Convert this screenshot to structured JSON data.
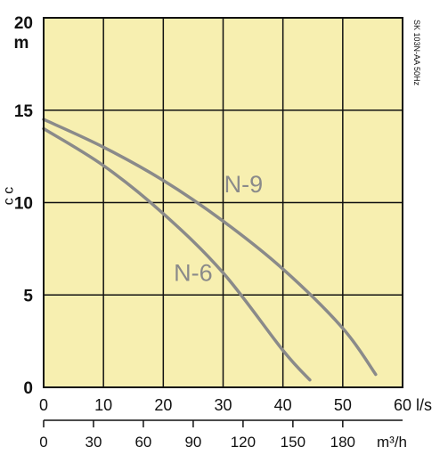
{
  "chart_data": {
    "type": "line",
    "title": "",
    "code_label": "SK 103N-AA 50Hz",
    "ylabel": "m",
    "y_title_glyphs": "ɔ ɔ",
    "xlabel": "l/s",
    "x2label": "m³/h",
    "xlim": [
      0,
      60
    ],
    "ylim": [
      0,
      20
    ],
    "x2lim": [
      0,
      216
    ],
    "grid": true,
    "plot_background": "#f7efb0",
    "curve_color": "#8a8a8a",
    "x_ticks": [
      0,
      10,
      20,
      30,
      40,
      50,
      60
    ],
    "y_ticks": [
      0,
      5,
      10,
      15,
      20
    ],
    "x2_ticks": [
      0,
      30,
      60,
      90,
      120,
      150,
      180
    ],
    "series": [
      {
        "name": "N-9",
        "points": [
          [
            0,
            14.5
          ],
          [
            10,
            13.0
          ],
          [
            20,
            11.2
          ],
          [
            30,
            9.0
          ],
          [
            40,
            6.4
          ],
          [
            50,
            3.2
          ],
          [
            55.5,
            0.7
          ]
        ]
      },
      {
        "name": "N-6",
        "points": [
          [
            0,
            14.0
          ],
          [
            10,
            12.0
          ],
          [
            20,
            9.4
          ],
          [
            30,
            6.2
          ],
          [
            40,
            2.0
          ],
          [
            44.5,
            0.4
          ]
        ]
      }
    ]
  }
}
